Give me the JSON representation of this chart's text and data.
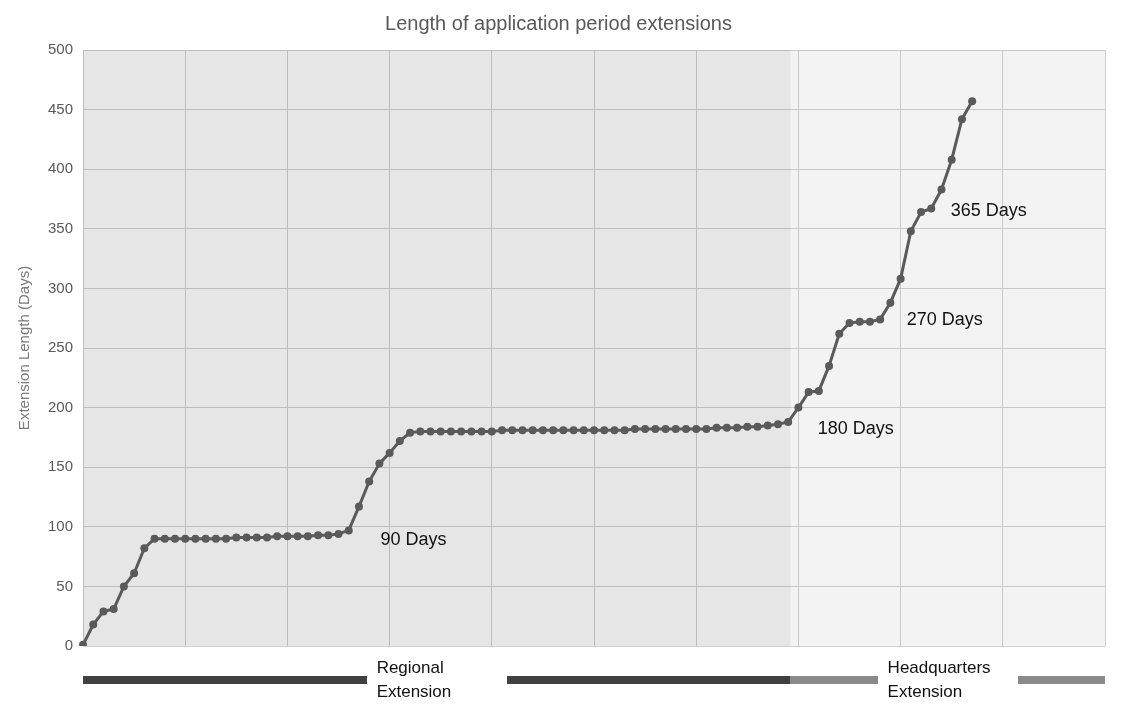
{
  "chart_data": {
    "type": "line",
    "title": "Length of application period extensions",
    "ylabel": "Extension Length (Days)",
    "categories": [
      null,
      null,
      null,
      null,
      null,
      null,
      null,
      null,
      null,
      null,
      null,
      null,
      null,
      null,
      null,
      null,
      null,
      null,
      null,
      null,
      null,
      null,
      null,
      null,
      null,
      null,
      null,
      null,
      null,
      null,
      null,
      null,
      null,
      null,
      null,
      null,
      null,
      null,
      null,
      null,
      null,
      null,
      null,
      null,
      null,
      null,
      null,
      null,
      null,
      null,
      null,
      null,
      null,
      null,
      null,
      null,
      null,
      null,
      null,
      null,
      null,
      null,
      null,
      null,
      null,
      null,
      null,
      null,
      null,
      null,
      null,
      null,
      null,
      null,
      null,
      null,
      null,
      null,
      null,
      null,
      null,
      null,
      null,
      null,
      null,
      null,
      null,
      null,
      null,
      null,
      null,
      null,
      null,
      null,
      null,
      null,
      null,
      null,
      null,
      null,
      null
    ],
    "series": [
      {
        "color": "#5a5a5a",
        "values": [
          1,
          18,
          29,
          31,
          50,
          61,
          82,
          90,
          90,
          90,
          90,
          90,
          90,
          90,
          90,
          91,
          91,
          91,
          91,
          92,
          92,
          92,
          92,
          93,
          93,
          94,
          97,
          117,
          138,
          153,
          162,
          172,
          179,
          180,
          180,
          180,
          180,
          180,
          180,
          180,
          180,
          181,
          181,
          181,
          181,
          181,
          181,
          181,
          181,
          181,
          181,
          181,
          181,
          181,
          182,
          182,
          182,
          182,
          182,
          182,
          182,
          182,
          183,
          183,
          183,
          184,
          184,
          185,
          186,
          188,
          200,
          213,
          214,
          235,
          262,
          271,
          272,
          272,
          274,
          288,
          308,
          348,
          364,
          367,
          383,
          408,
          442,
          457,
          null,
          null,
          null,
          null,
          null,
          null,
          null,
          null,
          null,
          null,
          null,
          null,
          null
        ]
      }
    ],
    "ylim": [
      0,
      500
    ],
    "yticks": [
      0,
      50,
      100,
      150,
      200,
      250,
      300,
      350,
      400,
      450,
      500
    ],
    "tick_labels": "y",
    "grid": true,
    "legend": false,
    "marker": "circle",
    "annotations": [
      "90 Days",
      "180 Days",
      "270 Days",
      "365 Days",
      "Regional Extension",
      "Headquarters Extension"
    ]
  }
}
